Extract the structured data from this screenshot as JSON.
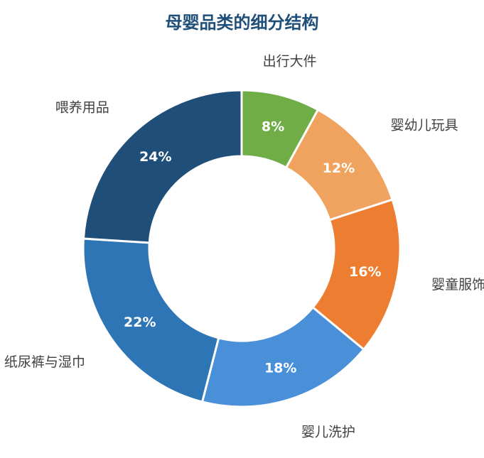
{
  "chart_data": {
    "type": "pie",
    "title": "母婴品类的细分结构",
    "categories": [
      "出行大件",
      "婴幼儿玩具",
      "婴童服饰",
      "婴儿洗护",
      "纸尿裤与湿巾",
      "喂养用品"
    ],
    "values": [
      8,
      12,
      16,
      18,
      22,
      24
    ],
    "value_labels": [
      "8%",
      "12%",
      "16%",
      "18%",
      "22%",
      "24%"
    ],
    "colors": [
      "#70ad47",
      "#f0a35e",
      "#ed7d31",
      "#4a90d9",
      "#2e75b6",
      "#1f4e79"
    ],
    "donut": true,
    "legend": "none"
  }
}
